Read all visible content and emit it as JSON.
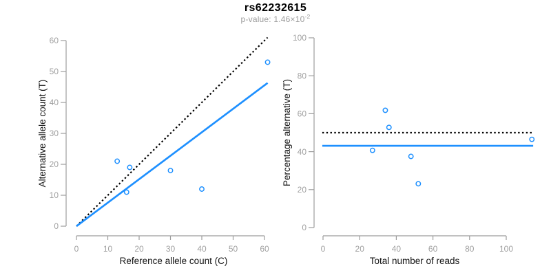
{
  "header": {
    "title": "rs62232615",
    "pvalue_prefix": "p-value: 1.46×10",
    "pvalue_exponent": "-2"
  },
  "colors": {
    "background": "#ffffff",
    "accent_blue": "#1e90ff",
    "reference_black": "#000000",
    "axis_gray": "#9c9c9c",
    "tick_text_gray": "#a0a0a0",
    "axis_title_color": "#111111",
    "subtitle_gray": "#9b9b9b"
  },
  "chart_data": [
    {
      "type": "scatter",
      "name": "allele-count-panel",
      "title": "",
      "xlabel": "Reference allele count (C)",
      "ylabel": "Alternative allele count (T)",
      "xlim": [
        0,
        60
      ],
      "ylim": [
        0,
        60
      ],
      "xticks": [
        0,
        10,
        20,
        30,
        40,
        50,
        60
      ],
      "yticks": [
        0,
        10,
        20,
        30,
        40,
        50,
        60
      ],
      "grid": false,
      "legend": null,
      "points": [
        [
          13,
          21
        ],
        [
          17,
          19
        ],
        [
          16,
          11
        ],
        [
          30,
          18
        ],
        [
          40,
          12
        ],
        [
          61,
          53
        ]
      ],
      "lines": [
        {
          "name": "expected-identity-line",
          "style": "dotted",
          "color": "#000000",
          "from": [
            0,
            0
          ],
          "to": [
            61,
            61
          ]
        },
        {
          "name": "fitted-ratio-line",
          "style": "solid",
          "color": "#1e90ff",
          "from": [
            0,
            0
          ],
          "to": [
            61,
            46.3
          ]
        }
      ]
    },
    {
      "type": "scatter",
      "name": "percentage-panel",
      "title": "",
      "xlabel": "Total number of reads",
      "ylabel": "Percentage alternative (T)",
      "xlim": [
        0,
        100
      ],
      "ylim": [
        0,
        100
      ],
      "xticks": [
        0,
        20,
        40,
        60,
        80,
        100
      ],
      "yticks": [
        0,
        20,
        40,
        60,
        80,
        100
      ],
      "grid": false,
      "legend": null,
      "points": [
        [
          34,
          61.8
        ],
        [
          36,
          52.8
        ],
        [
          27,
          40.7
        ],
        [
          48,
          37.5
        ],
        [
          52,
          23.1
        ],
        [
          114,
          46.5
        ]
      ],
      "lines": [
        {
          "name": "expected-50pct-line",
          "style": "dotted",
          "color": "#000000",
          "from": [
            -0.4,
            50
          ],
          "to": [
            114.7,
            50
          ]
        },
        {
          "name": "observed-mean-pct-line",
          "style": "solid",
          "color": "#1e90ff",
          "from": [
            -0.4,
            43.1
          ],
          "to": [
            114.7,
            43.1
          ]
        }
      ]
    }
  ]
}
